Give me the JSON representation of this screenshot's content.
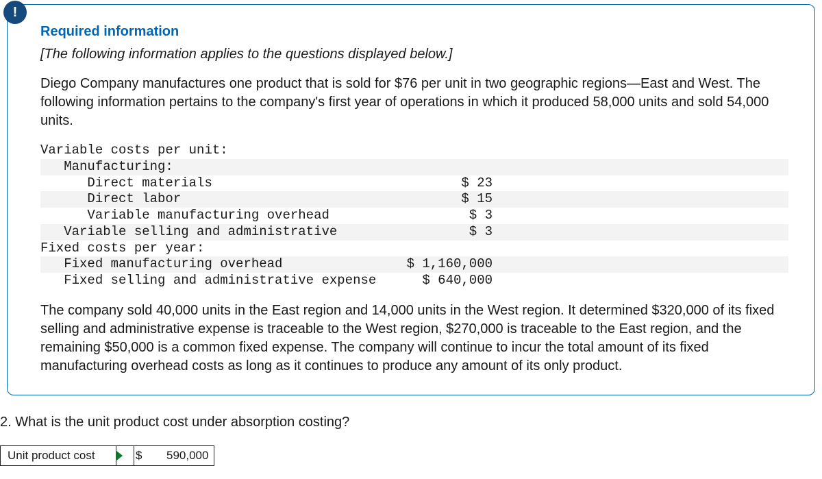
{
  "badge_glyph": "!",
  "heading": "Required information",
  "applies_note": "[The following information applies to the questions displayed below.]",
  "intro_para": "Diego Company manufactures one product that is sold for $76 per unit in two geographic regions—East and West. The following information pertains to the company's first year of operations in which it produced 58,000 units and sold 54,000 units.",
  "cost_table": {
    "rows": [
      {
        "label": "Variable costs per unit:",
        "value": "",
        "indent": 0,
        "alt": false
      },
      {
        "label": "Manufacturing:",
        "value": "",
        "indent": 1,
        "alt": true
      },
      {
        "label": "Direct materials",
        "value": "$ 23",
        "indent": 2,
        "alt": false
      },
      {
        "label": "Direct labor",
        "value": "$ 15",
        "indent": 2,
        "alt": true
      },
      {
        "label": "Variable manufacturing overhead",
        "value": "$ 3",
        "indent": 2,
        "alt": false
      },
      {
        "label": "Variable selling and administrative",
        "value": "$ 3",
        "indent": 1,
        "alt": true
      },
      {
        "label": "Fixed costs per year:",
        "value": "",
        "indent": 0,
        "alt": false
      },
      {
        "label": "Fixed manufacturing overhead",
        "value": "$ 1,160,000",
        "indent": 1,
        "alt": true
      },
      {
        "label": "Fixed selling and administrative expense",
        "value": "$ 640,000",
        "indent": 1,
        "alt": false
      }
    ]
  },
  "followup_para": "The company sold 40,000 units in the East region and 14,000 units in the West region. It determined $320,000 of its fixed selling and administrative expense is traceable to the West region, $270,000 is traceable to the East region, and the remaining $50,000 is a common fixed expense. The company will continue to incur the total amount of its fixed manufacturing overhead costs as long as it continues to produce any amount of its only product.",
  "question_text": "2. What is the unit product cost under absorption costing?",
  "answer": {
    "label": "Unit product cost",
    "currency": "$",
    "value": "590,000"
  },
  "colors": {
    "panel_border": "#0066b3",
    "heading": "#0066b3",
    "badge_bg": "#174a7c",
    "alt_row_bg": "#f3f3f3"
  }
}
